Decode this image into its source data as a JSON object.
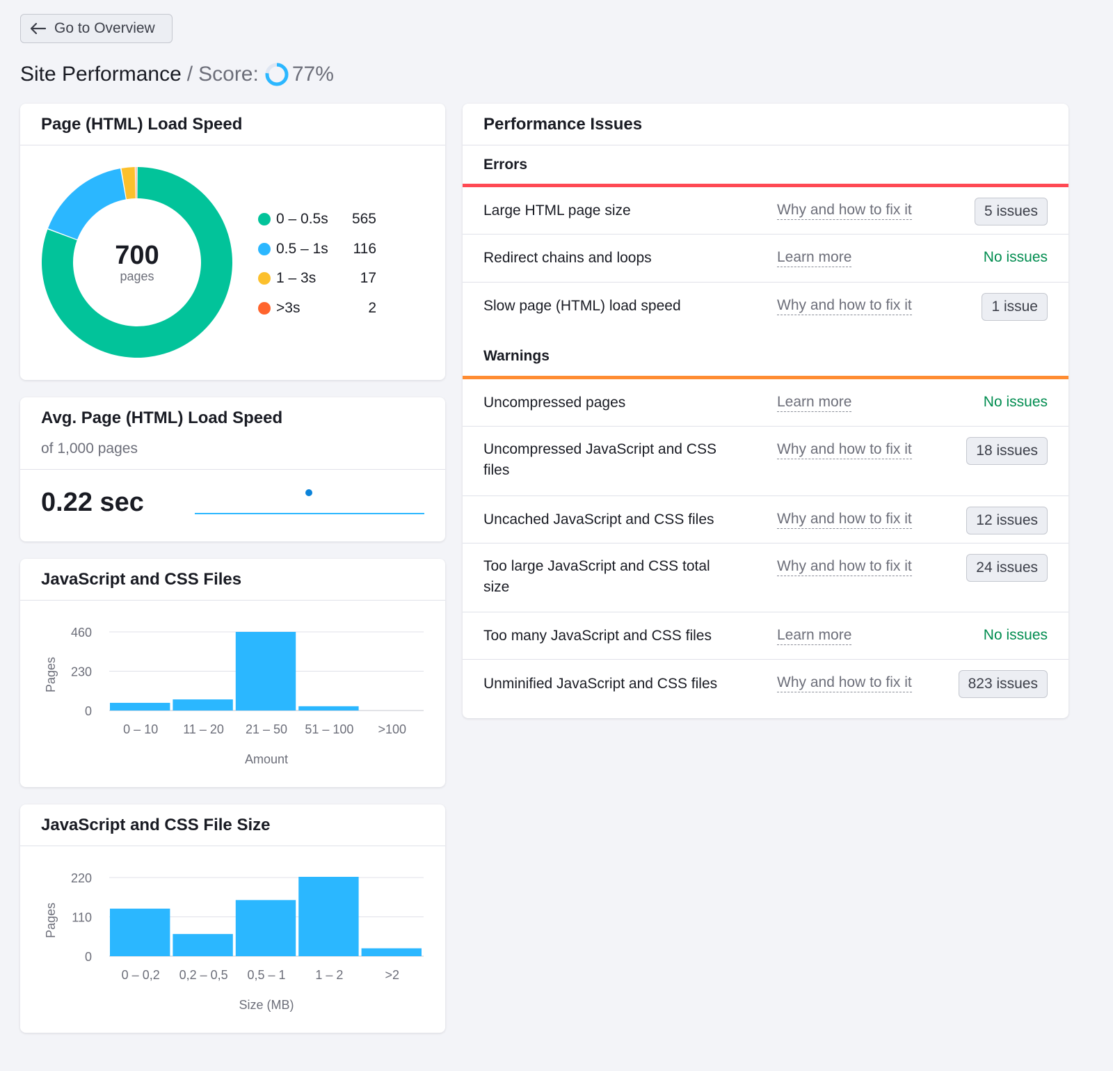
{
  "nav": {
    "back_label": "Go to Overview",
    "back_icon": "arrow-left-icon"
  },
  "header": {
    "title": "Site Performance",
    "separator": "/",
    "score_label": "Score:",
    "score_value": "77%",
    "score_fraction": 0.77
  },
  "colors": {
    "green": "#02c39a",
    "blue": "#2bb7ff",
    "yellow": "#fcc02c",
    "orange": "#ff642d",
    "error_bar": "#ff4953",
    "warning_bar": "#ff8c32",
    "ok_text": "#008c4f"
  },
  "load_speed": {
    "title": "Page (HTML) Load Speed",
    "total": "700",
    "total_unit": "pages",
    "chart_data": {
      "type": "pie",
      "categories": [
        "0 – 0.5s",
        "0.5 – 1s",
        "1 – 3s",
        ">3s"
      ],
      "values": [
        565,
        116,
        17,
        2
      ],
      "colors": [
        "#02c39a",
        "#2bb7ff",
        "#fcc02c",
        "#ff642d"
      ]
    },
    "legend": [
      {
        "label": "0 – 0.5s",
        "value": "565",
        "color": "#02c39a"
      },
      {
        "label": "0.5 – 1s",
        "value": "116",
        "color": "#2bb7ff"
      },
      {
        "label": "1 – 3s",
        "value": "17",
        "color": "#fcc02c"
      },
      {
        "label": ">3s",
        "value": "2",
        "color": "#ff642d"
      }
    ]
  },
  "avg_speed": {
    "title": "Avg. Page (HTML) Load Speed",
    "subtitle": "of 1,000 pages",
    "value": "0.22 sec"
  },
  "js_css_files": {
    "title": "JavaScript and CSS Files",
    "chart_data": {
      "type": "bar",
      "categories": [
        "0 – 10",
        "11 – 20",
        "21 – 50",
        "51 – 100",
        ">100"
      ],
      "values": [
        45,
        65,
        460,
        25,
        0
      ],
      "yticks": [
        "0",
        "230",
        "460"
      ],
      "ylim": [
        0,
        460
      ],
      "xlabel": "Amount",
      "ylabel": "Pages"
    }
  },
  "js_css_size": {
    "title": "JavaScript and CSS File Size",
    "chart_data": {
      "type": "bar",
      "categories": [
        "0 – 0,2",
        "0,2 – 0,5",
        "0,5 – 1",
        "1 – 2",
        ">2"
      ],
      "values": [
        133,
        62,
        157,
        222,
        22
      ],
      "yticks": [
        "0",
        "110",
        "220"
      ],
      "ylim": [
        0,
        220
      ],
      "xlabel": "Size (MB)",
      "ylabel": "Pages"
    }
  },
  "issues": {
    "title": "Performance Issues",
    "errors_label": "Errors",
    "warnings_label": "Warnings",
    "errors": [
      {
        "name": "Large HTML page size",
        "link": "Why and how to fix it",
        "status": "5 issues",
        "ok": false
      },
      {
        "name": "Redirect chains and loops",
        "link": "Learn more",
        "status": "No issues",
        "ok": true
      },
      {
        "name": "Slow page (HTML) load speed",
        "link": "Why and how to fix it",
        "status": "1 issue",
        "ok": false
      }
    ],
    "warnings": [
      {
        "name": "Uncompressed pages",
        "link": "Learn more",
        "status": "No issues",
        "ok": true
      },
      {
        "name": "Uncompressed JavaScript and CSS files",
        "link": "Why and how to fix it",
        "status": "18 issues",
        "ok": false
      },
      {
        "name": "Uncached JavaScript and CSS files",
        "link": "Why and how to fix it",
        "status": "12 issues",
        "ok": false
      },
      {
        "name": "Too large JavaScript and CSS total size",
        "link": "Why and how to fix it",
        "status": "24 issues",
        "ok": false
      },
      {
        "name": "Too many JavaScript and CSS files",
        "link": "Learn more",
        "status": "No issues",
        "ok": true
      },
      {
        "name": "Unminified JavaScript and CSS files",
        "link": "Why and how to fix it",
        "status": "823 issues",
        "ok": false
      }
    ]
  }
}
